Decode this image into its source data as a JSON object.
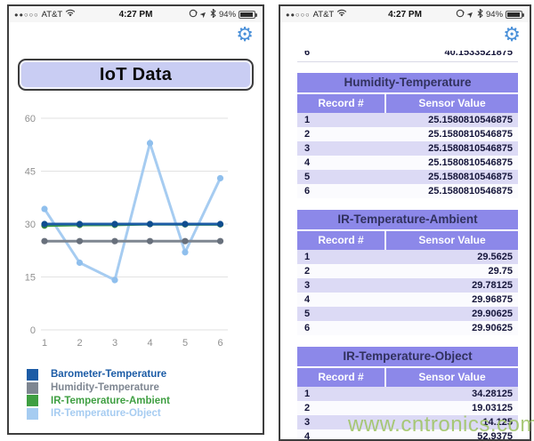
{
  "status_bar": {
    "signal_dots": "●●○○○",
    "carrier": "AT&T",
    "time": "4:27 PM",
    "battery_percent": "94%",
    "icons": [
      "wifi-icon",
      "rotation-lock-icon",
      "location-arrow-icon",
      "bluetooth-icon",
      "battery-icon"
    ]
  },
  "icons": {
    "gear": "⚙",
    "location_arrow": "➤"
  },
  "left_phone": {
    "title": "IoT Data"
  },
  "chart_data": {
    "type": "line",
    "title": "IoT Data",
    "x": [
      1,
      2,
      3,
      4,
      5,
      6
    ],
    "xlabel": "",
    "ylabel": "",
    "yticks": [
      0,
      15,
      30,
      45,
      60
    ],
    "ylim": [
      0,
      62
    ],
    "grid": true,
    "legend_position": "bottom-left",
    "series": [
      {
        "name": "Barometer-Temperature",
        "color": "#1c5ca6",
        "point_color": "#0f4d8f",
        "z": 4,
        "values": [
          30,
          30,
          30,
          30,
          30,
          30
        ]
      },
      {
        "name": "Humidity-Temperature",
        "color": "#7e8691",
        "point_color": "#68707c",
        "z": 3,
        "values": [
          25.158,
          25.158,
          25.158,
          25.158,
          25.158,
          25.158
        ]
      },
      {
        "name": "IR-Temperature-Ambient",
        "color": "#3f9f42",
        "point_color": "#35893a",
        "z": 2,
        "values": [
          29.5625,
          29.75,
          29.78125,
          29.96875,
          29.90625,
          29.90625
        ]
      },
      {
        "name": "IR-Temperature-Object",
        "color": "#a6ccf1",
        "point_color": "#8fbfed",
        "z": 1,
        "values": [
          34.28125,
          19.03125,
          14.125,
          52.9375,
          22,
          43
        ]
      }
    ]
  },
  "right_phone": {
    "clipped_row": {
      "record": "6",
      "value": "40.1533521875"
    },
    "tables": [
      {
        "title": "Humidity-Temperature",
        "columns": [
          "Record #",
          "Sensor Value"
        ],
        "rows": [
          [
            "1",
            "25.1580810546875"
          ],
          [
            "2",
            "25.1580810546875"
          ],
          [
            "3",
            "25.1580810546875"
          ],
          [
            "4",
            "25.1580810546875"
          ],
          [
            "5",
            "25.1580810546875"
          ],
          [
            "6",
            "25.1580810546875"
          ]
        ]
      },
      {
        "title": "IR-Temperature-Ambient",
        "columns": [
          "Record #",
          "Sensor Value"
        ],
        "rows": [
          [
            "1",
            "29.5625"
          ],
          [
            "2",
            "29.75"
          ],
          [
            "3",
            "29.78125"
          ],
          [
            "4",
            "29.96875"
          ],
          [
            "5",
            "29.90625"
          ],
          [
            "6",
            "29.90625"
          ]
        ]
      },
      {
        "title": "IR-Temperature-Object",
        "columns": [
          "Record #",
          "Sensor Value"
        ],
        "rows": [
          [
            "1",
            "34.28125"
          ],
          [
            "2",
            "19.03125"
          ],
          [
            "3",
            "14.125"
          ],
          [
            "4",
            "52.9375"
          ]
        ]
      }
    ]
  },
  "watermark": "www.cntronics.com",
  "colors": {
    "accent_purple": "#8c88e9",
    "gear_blue": "#4a90d9",
    "title_box_fill": "#c9cdf3",
    "row_alt": "#dcdaf5",
    "watermark_green": "#a0c468"
  }
}
